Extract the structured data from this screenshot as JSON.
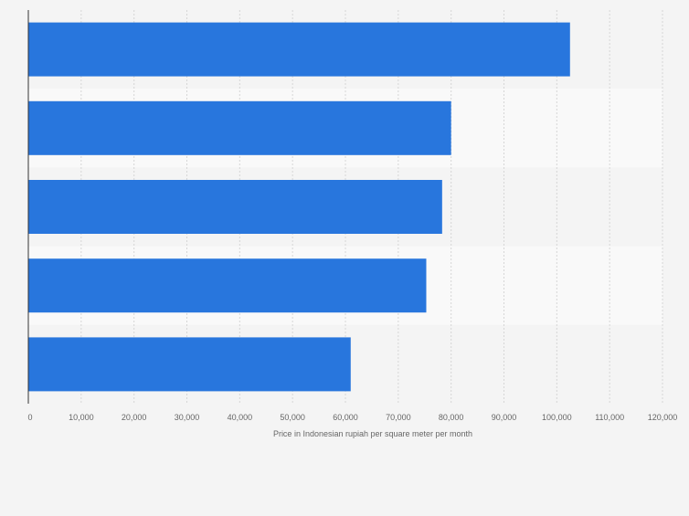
{
  "chart_data": {
    "type": "bar",
    "orientation": "horizontal",
    "categories": [
      "",
      "",
      "",
      "",
      ""
    ],
    "values": [
      102500,
      80000,
      78300,
      75300,
      61000
    ],
    "title": "",
    "xlabel": "Price in Indonesian rupiah per square meter per month",
    "ylabel": "",
    "xlim": [
      0,
      120000
    ],
    "xticks": [
      0,
      10000,
      20000,
      30000,
      40000,
      50000,
      60000,
      70000,
      80000,
      90000,
      100000,
      110000,
      120000
    ],
    "tick_labels": [
      "0",
      "10,000",
      "20,000",
      "30,000",
      "40,000",
      "50,000",
      "60,000",
      "70,000",
      "80,000",
      "90,000",
      "100,000",
      "110,000",
      "120,000"
    ],
    "grid": true,
    "bar_color": "#2876dd",
    "band_colors": [
      "#f4f4f4",
      "#f9f9f9"
    ]
  }
}
